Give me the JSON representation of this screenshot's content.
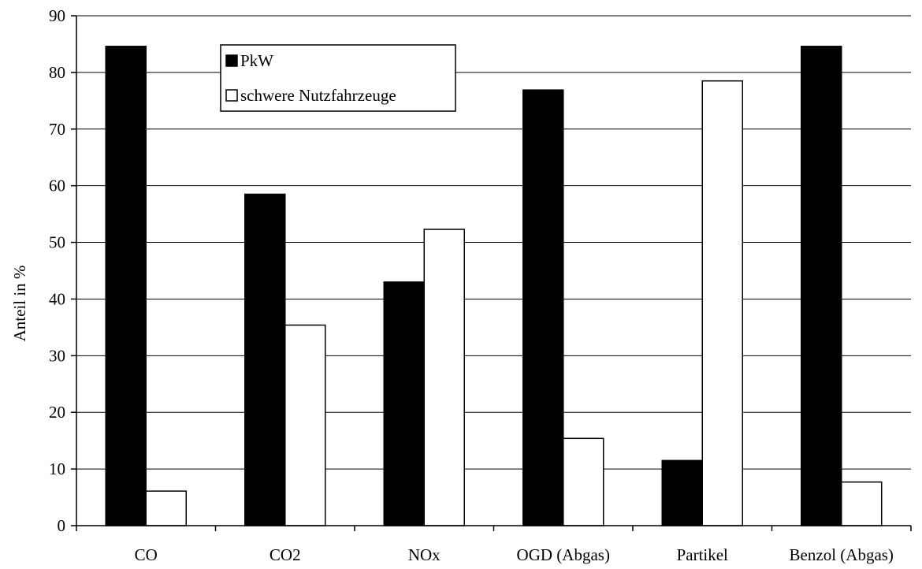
{
  "chart_data": {
    "type": "bar",
    "categories": [
      "CO",
      "CO2",
      "NOx",
      "OGD (Abgas)",
      "Partikel",
      "Benzol (Abgas)"
    ],
    "series": [
      {
        "name": "PkW",
        "values": [
          84.6,
          58.5,
          43.0,
          76.9,
          11.5,
          84.6
        ],
        "color": "#000000"
      },
      {
        "name": "schwere Nutzfahrzeuge",
        "values": [
          6.1,
          35.4,
          52.3,
          15.4,
          78.5,
          7.7
        ],
        "color": "#ffffff"
      }
    ],
    "title": "",
    "xlabel": "",
    "ylabel": "Anteil in %",
    "ylim": [
      0,
      90
    ],
    "yticks": [
      0,
      10,
      20,
      30,
      40,
      50,
      60,
      70,
      80,
      90
    ],
    "grid": true,
    "legend_position": "top-left inside"
  }
}
